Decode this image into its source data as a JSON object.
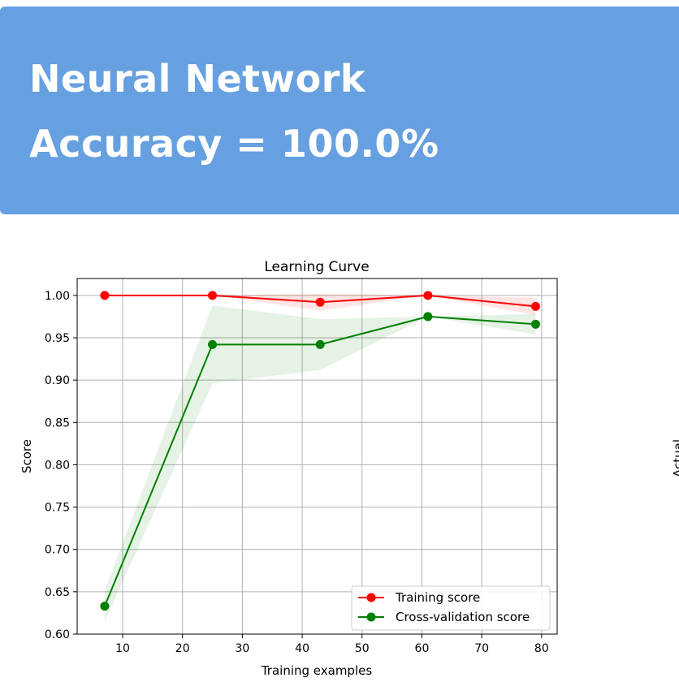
{
  "banner": {
    "model_name": "Neural Network",
    "accuracy_text": "Accuracy = 100.0%",
    "background_color": "#66a0e0"
  },
  "side_clip": {
    "text": "Actual"
  },
  "chart_data": {
    "type": "line",
    "title": "Learning Curve",
    "xlabel": "Training examples",
    "ylabel": "Score",
    "xlim": [
      2.4,
      82.6
    ],
    "ylim": [
      0.6,
      1.02
    ],
    "xticks": [
      10,
      20,
      30,
      40,
      50,
      60,
      70,
      80
    ],
    "yticks": [
      0.6,
      0.65,
      0.7,
      0.75,
      0.8,
      0.85,
      0.9,
      0.95,
      1.0
    ],
    "ytick_labels": [
      "0.60",
      "0.65",
      "0.70",
      "0.75",
      "0.80",
      "0.85",
      "0.90",
      "0.95",
      "1.00"
    ],
    "grid": true,
    "legend_position": "lower-right",
    "x": [
      7,
      25,
      43,
      61,
      79
    ],
    "series": [
      {
        "name": "Training score",
        "color": "#ff0000",
        "values": [
          1.0,
          1.0,
          0.992,
          1.0,
          0.987
        ],
        "band_lower": [
          1.0,
          1.0,
          0.982,
          1.0,
          0.977
        ],
        "band_upper": [
          1.0,
          1.0,
          1.002,
          1.0,
          0.997
        ]
      },
      {
        "name": "Cross-validation score",
        "color": "#008000",
        "values": [
          0.633,
          0.942,
          0.942,
          0.975,
          0.966
        ],
        "band_lower": [
          0.615,
          0.896,
          0.912,
          0.975,
          0.954
        ],
        "band_upper": [
          0.651,
          0.988,
          0.972,
          0.975,
          0.978
        ]
      }
    ]
  }
}
